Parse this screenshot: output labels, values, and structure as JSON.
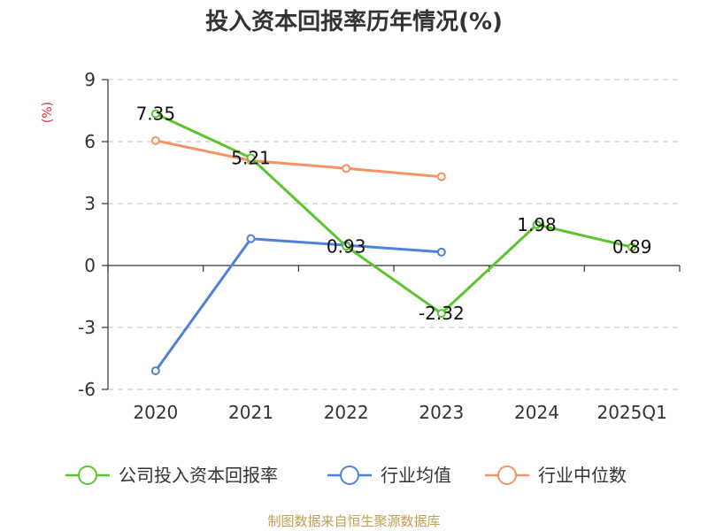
{
  "chart_data": {
    "type": "line",
    "title": "投入资本回报率历年情况(%)",
    "unit": "(%)",
    "categories": [
      "2020",
      "2021",
      "2022",
      "2023",
      "2024",
      "2025Q1"
    ],
    "ylim": [
      -6,
      9
    ],
    "yticks": [
      "9",
      "6",
      "3",
      "0",
      "-3",
      "-6"
    ],
    "grid": true,
    "legend_position": "bottom",
    "series": [
      {
        "name": "公司投入资本回报率",
        "color": "#5cc42e",
        "values": [
          7.35,
          5.21,
          0.93,
          -2.32,
          1.98,
          0.89
        ],
        "labels": [
          "7.35",
          "5.21",
          "0.93",
          "-2.32",
          "1.98",
          "0.89"
        ]
      },
      {
        "name": "行业均值",
        "color": "#4f81d8",
        "values": [
          -5.1,
          1.3,
          0.98,
          0.65,
          null,
          null
        ]
      },
      {
        "name": "行业中位数",
        "color": "#f59362",
        "values": [
          6.05,
          5.08,
          4.7,
          4.3,
          null,
          null
        ]
      }
    ]
  },
  "source": "制图数据来自恒生聚源数据库"
}
